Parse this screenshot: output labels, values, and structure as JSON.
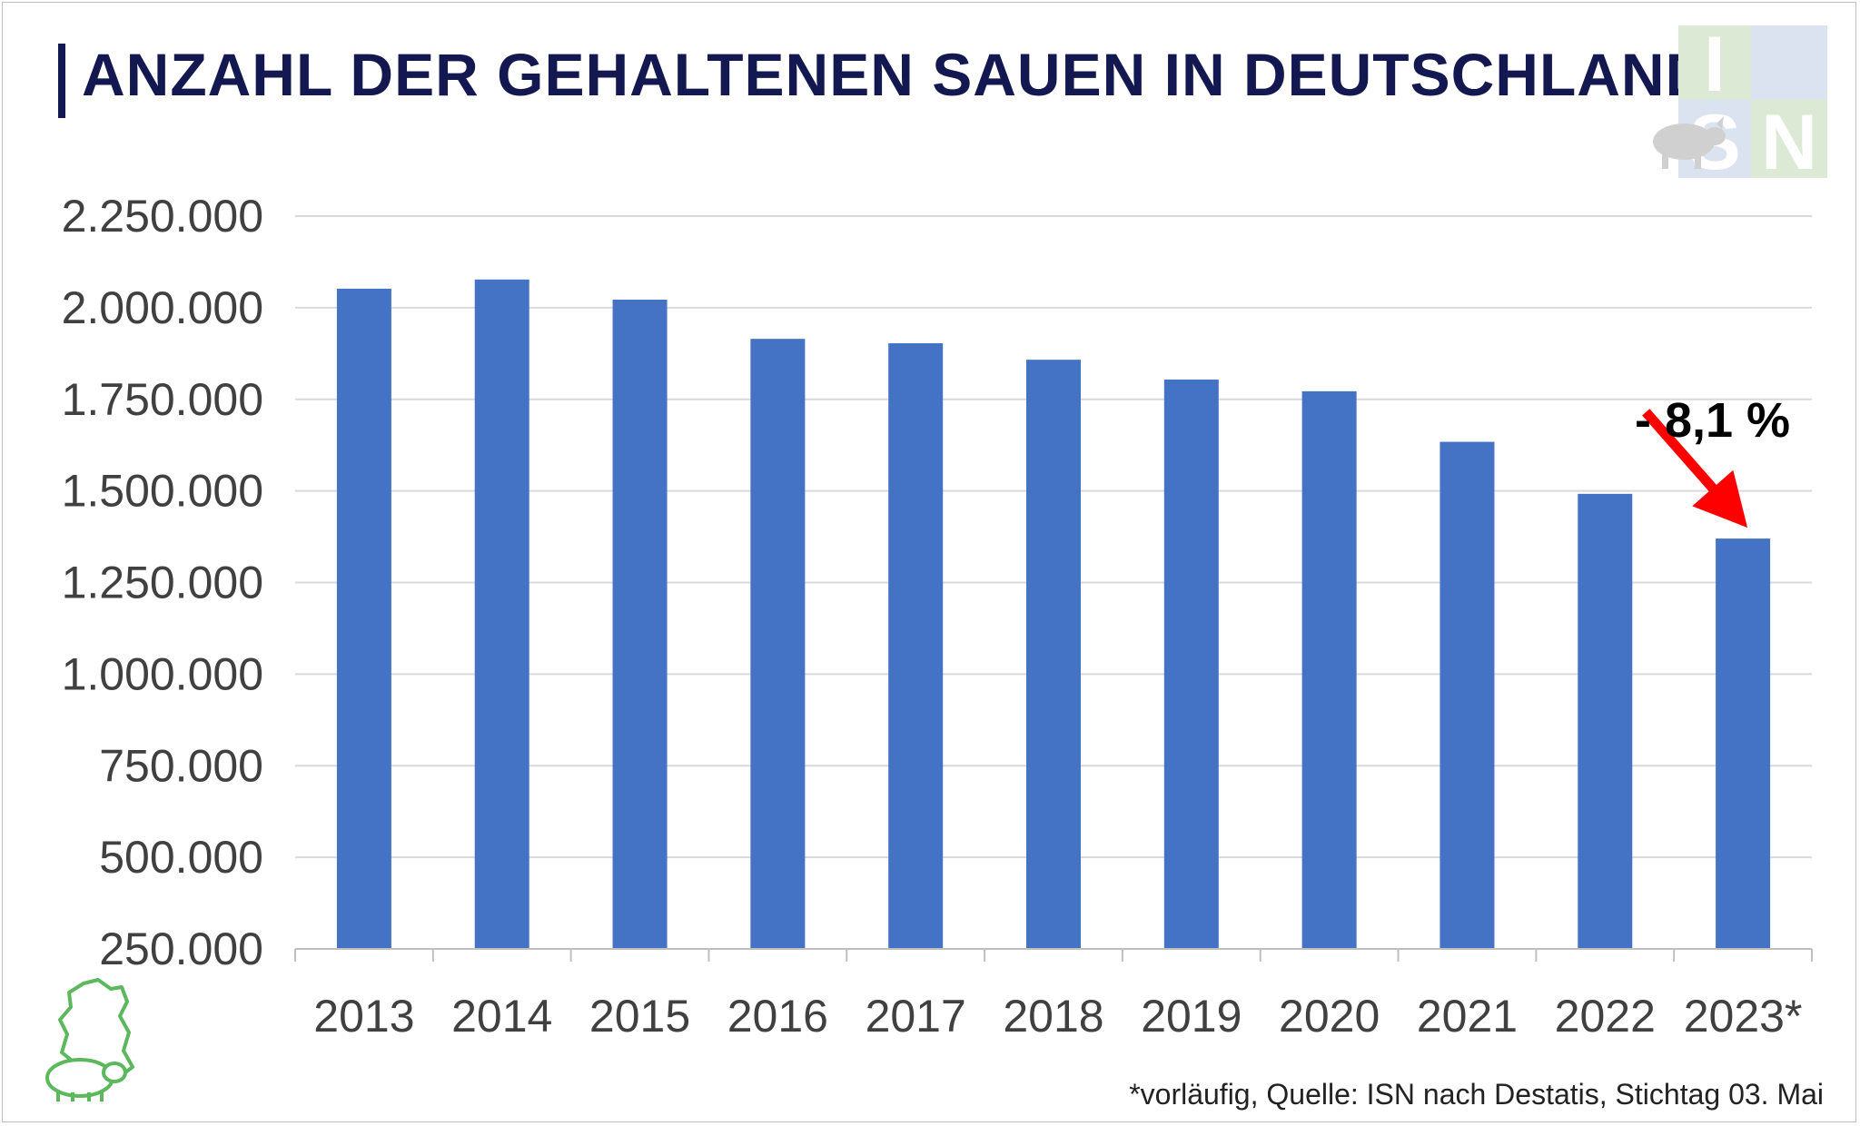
{
  "title": "ANZAHL DER GEHALTENEN SAUEN IN DEUTSCHLAND",
  "logo": {
    "letters": [
      "I",
      "S",
      "N"
    ],
    "icon": "pig-silhouette-icon"
  },
  "badge_icon": "germany-map-pig-icon",
  "colors": {
    "bar": "#4472C4",
    "title": "#141850",
    "arrow": "#FF0000",
    "grid": "#d9d9d9"
  },
  "chart_data": {
    "type": "bar",
    "categories": [
      "2013",
      "2014",
      "2015",
      "2016",
      "2017",
      "2018",
      "2019",
      "2020",
      "2021",
      "2022",
      "2023*"
    ],
    "values": [
      2052000,
      2077000,
      2022000,
      1915000,
      1903000,
      1858000,
      1804000,
      1772000,
      1634000,
      1492000,
      1370000
    ],
    "ylim": [
      250000,
      2250000
    ],
    "yticks": [
      250000,
      500000,
      750000,
      1000000,
      1250000,
      1500000,
      1750000,
      2000000,
      2250000
    ],
    "ytick_labels": [
      "250.000",
      "500.000",
      "750.000",
      "1.000.000",
      "1.250.000",
      "1.500.000",
      "1.750.000",
      "2.000.000",
      "2.250.000"
    ],
    "grid": true,
    "annotation": {
      "text": "- 8,1 %",
      "arrow_from_category": "2022",
      "arrow_to_category": "2023*"
    }
  },
  "footnote": "*vorläufig, Quelle: ISN nach Destatis, Stichtag 03. Mai"
}
